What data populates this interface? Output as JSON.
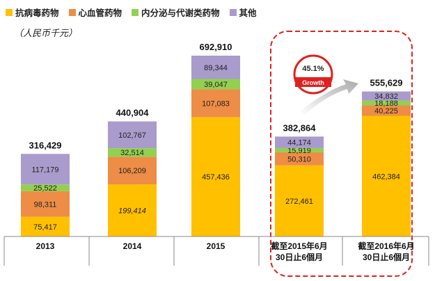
{
  "legend": [
    {
      "name": "抗病毒药物",
      "color": "#FFC000"
    },
    {
      "name": "心血管药物",
      "color": "#ED8D46"
    },
    {
      "name": "内分泌与代谢类药物",
      "color": "#92D050"
    },
    {
      "name": "其他",
      "color": "#A99BCB"
    }
  ],
  "unit_label": "（人民币千元）",
  "growth": {
    "value": "45.1%",
    "label": "Growth"
  },
  "chart_data": {
    "type": "bar",
    "stacked": true,
    "categories": [
      "2013",
      "2014",
      "2015",
      "截至2015年6月30日止6個月",
      "截至2016年6月30日止6個月"
    ],
    "category_lines": [
      [
        "2013"
      ],
      [
        "2014"
      ],
      [
        "2015"
      ],
      [
        "截至2015年6月",
        "30日止6個月"
      ],
      [
        "截至2016年6月",
        "30日止6個月"
      ]
    ],
    "series": [
      {
        "name": "抗病毒药物",
        "color": "#FFC000",
        "values": [
          75417,
          199414,
          457436,
          272461,
          462384
        ],
        "labels": [
          "75,417",
          "199,414",
          "457,436",
          "272,461",
          "462,384"
        ]
      },
      {
        "name": "心血管药物",
        "color": "#ED8D46",
        "values": [
          98311,
          106209,
          107083,
          50310,
          40225
        ],
        "labels": [
          "98,311",
          "106,209",
          "107,083",
          "50,310",
          "40,225"
        ]
      },
      {
        "name": "内分泌与代谢类药物",
        "color": "#92D050",
        "values": [
          25522,
          32514,
          39047,
          15919,
          18188
        ],
        "labels": [
          "25,522",
          "32,514",
          "39,047",
          "15,919",
          "18,188"
        ]
      },
      {
        "name": "其他",
        "color": "#A99BCB",
        "values": [
          117179,
          102767,
          89344,
          44174,
          34832
        ],
        "labels": [
          "117,179",
          "102,767",
          "89,344",
          "44,174",
          "34,832"
        ]
      }
    ],
    "totals": [
      "316,429",
      "440,904",
      "692,910",
      "382,864",
      "555,629"
    ],
    "ylim": [
      0,
      700000
    ],
    "grid": false,
    "legend_position": "top-left",
    "highlight": "dashed red box around last two categories"
  }
}
